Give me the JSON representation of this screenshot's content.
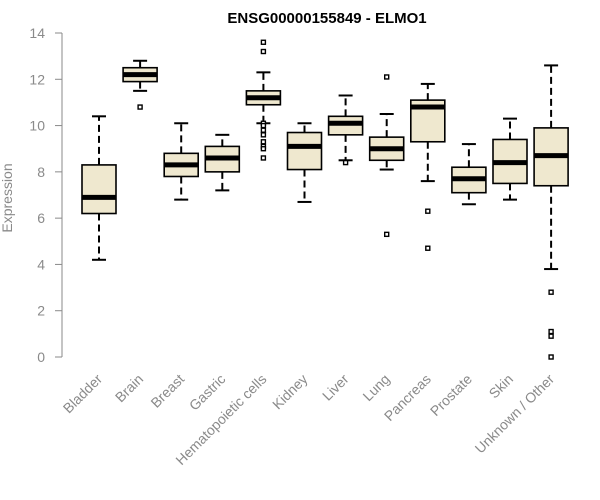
{
  "chart_data": {
    "type": "boxplot",
    "title": "ENSG00000155849 - ELMO1",
    "xlabel": "",
    "ylabel": "Expression",
    "ylim": [
      0,
      14
    ],
    "yticks": [
      0,
      2,
      4,
      6,
      8,
      10,
      12,
      14
    ],
    "categories": [
      "Bladder",
      "Brain",
      "Breast",
      "Gastric",
      "Hematopoietic cells",
      "Kidney",
      "Liver",
      "Lung",
      "Pancreas",
      "Prostate",
      "Skin",
      "Unknown / Other"
    ],
    "series": [
      {
        "category": "Bladder",
        "whisker_low": 4.2,
        "q1": 6.2,
        "median": 6.9,
        "q3": 8.3,
        "whisker_high": 10.4,
        "outliers": []
      },
      {
        "category": "Brain",
        "whisker_low": 11.5,
        "q1": 11.9,
        "median": 12.2,
        "q3": 12.5,
        "whisker_high": 12.8,
        "outliers": [
          10.8
        ]
      },
      {
        "category": "Breast",
        "whisker_low": 6.8,
        "q1": 7.8,
        "median": 8.3,
        "q3": 8.8,
        "whisker_high": 10.1,
        "outliers": []
      },
      {
        "category": "Gastric",
        "whisker_low": 7.2,
        "q1": 8.0,
        "median": 8.6,
        "q3": 9.1,
        "whisker_high": 9.6,
        "outliers": []
      },
      {
        "category": "Hematopoietic cells",
        "whisker_low": 10.1,
        "q1": 10.9,
        "median": 11.2,
        "q3": 11.5,
        "whisker_high": 12.3,
        "outliers": [
          13.6,
          13.2,
          10.1,
          10.0,
          9.8,
          9.6,
          9.3,
          9.1,
          9.0,
          8.6
        ]
      },
      {
        "category": "Kidney",
        "whisker_low": 6.7,
        "q1": 8.1,
        "median": 9.1,
        "q3": 9.7,
        "whisker_high": 10.1,
        "outliers": []
      },
      {
        "category": "Liver",
        "whisker_low": 8.5,
        "q1": 9.6,
        "median": 10.1,
        "q3": 10.4,
        "whisker_high": 11.3,
        "outliers": [
          8.4
        ]
      },
      {
        "category": "Lung",
        "whisker_low": 8.1,
        "q1": 8.5,
        "median": 9.0,
        "q3": 9.5,
        "whisker_high": 10.5,
        "outliers": [
          12.1,
          5.3
        ]
      },
      {
        "category": "Pancreas",
        "whisker_low": 7.6,
        "q1": 9.3,
        "median": 10.8,
        "q3": 11.1,
        "whisker_high": 11.8,
        "outliers": [
          6.3,
          4.7
        ]
      },
      {
        "category": "Prostate",
        "whisker_low": 6.6,
        "q1": 7.1,
        "median": 7.7,
        "q3": 8.2,
        "whisker_high": 9.2,
        "outliers": []
      },
      {
        "category": "Skin",
        "whisker_low": 6.8,
        "q1": 7.5,
        "median": 8.4,
        "q3": 9.4,
        "whisker_high": 10.3,
        "outliers": []
      },
      {
        "category": "Unknown / Other",
        "whisker_low": 3.8,
        "q1": 7.4,
        "median": 8.7,
        "q3": 9.9,
        "whisker_high": 12.6,
        "outliers": [
          2.8,
          1.1,
          0.9,
          0.0
        ]
      }
    ],
    "grid": false,
    "legend": "none"
  },
  "colors": {
    "box_fill": "#efe8cf",
    "box_stroke": "#000000",
    "median": "#000000",
    "axis": "#8a8a8a",
    "text_muted": "#8a8a8a",
    "title": "#000000"
  }
}
